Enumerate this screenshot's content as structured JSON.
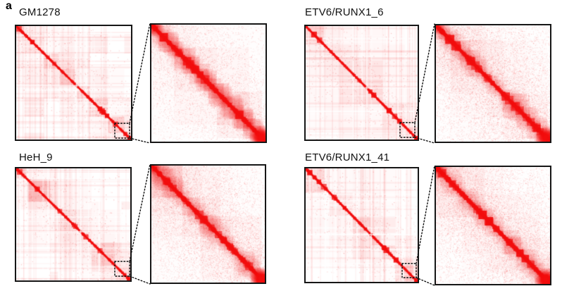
{
  "figure": {
    "panel_label": "a",
    "samples": [
      {
        "name": "GM1278"
      },
      {
        "name": "ETV6/RUNX1_6"
      },
      {
        "name": "HeH_9"
      },
      {
        "name": "ETV6/RUNX1_41"
      }
    ],
    "colors": {
      "heat_red": "#f20d0d",
      "map_border": "#161616",
      "background": "#ffffff",
      "annotation": "#111111"
    }
  }
}
